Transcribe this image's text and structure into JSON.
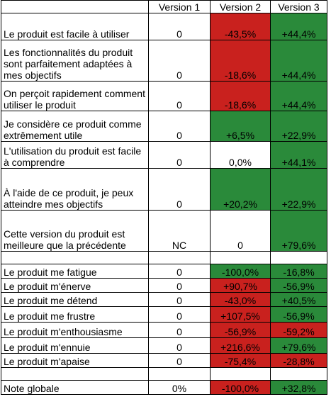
{
  "header": [
    "",
    "Version 1",
    "Version 2",
    "Version 3"
  ],
  "rows": [
    {
      "label": "Le produit est facile à utiliser",
      "v1": "0",
      "v2": "-43,5%",
      "v3": "+44,4%",
      "c2": "red",
      "c3": "green"
    },
    {
      "label": "Les fonctionnalités du produit sont parfaitement adaptées à mes objectifs",
      "v1": "0",
      "v2": "-18,6%",
      "v3": "+44,4%",
      "c2": "red",
      "c3": "green"
    },
    {
      "label": "On perçoit rapidement comment utiliser le produit",
      "v1": "0",
      "v2": "-18,6%",
      "v3": "+44,4%",
      "c2": "red",
      "c3": "green"
    },
    {
      "label": "Je considère ce produit comme extrêmement utile",
      "v1": "0",
      "v2": "+6,5%",
      "v3": "+22,9%",
      "c2": "green",
      "c3": "green"
    },
    {
      "label": "L'utilisation du produit est facile à comprendre",
      "v1": "0",
      "v2": "0,0%",
      "v3": "+44,1%",
      "c2": "",
      "c3": "green"
    },
    {
      "label": "À  l'aide de ce produit, je peux atteindre mes objectifs",
      "v1": "0",
      "v2": "+20,2%",
      "v3": "+22,9%",
      "c2": "green",
      "c3": "green"
    },
    {
      "label": "Cette version du produit est meilleure que la précédente",
      "v1": "NC",
      "v2": "0",
      "v3": "+79,6%",
      "c2": "",
      "c3": "green"
    },
    {
      "label": "Le produit me fatigue",
      "v1": "0",
      "v2": "-100,0%",
      "v3": "-16,8%",
      "c2": "green",
      "c3": "green"
    },
    {
      "label": "Le produit m'énerve",
      "v1": "0",
      "v2": "+90,7%",
      "v3": "-56,9%",
      "c2": "red",
      "c3": "green"
    },
    {
      "label": "Le produit me détend",
      "v1": "0",
      "v2": "-43,0%",
      "v3": "+40,5%",
      "c2": "red",
      "c3": "green"
    },
    {
      "label": "Le produit me frustre",
      "v1": "0",
      "v2": "+107,5%",
      "v3": "-56,9%",
      "c2": "red",
      "c3": "green"
    },
    {
      "label": "Le produit m'enthousiasme",
      "v1": "0",
      "v2": "-56,9%",
      "v3": "-59,2%",
      "c2": "red",
      "c3": "red"
    },
    {
      "label": "Le produit m'ennuie",
      "v1": "0",
      "v2": "+216,6%",
      "v3": "+79,6%",
      "c2": "red",
      "c3": "green"
    },
    {
      "label": "Le produit m'apaise",
      "v1": "0",
      "v2": "-75,4%",
      "v3": "-28,8%",
      "c2": "red",
      "c3": "red"
    },
    {
      "label": "Note globale",
      "v1": "0%",
      "v2": "-100,0%",
      "v3": "+32,8%",
      "c2": "red",
      "c3": "green"
    }
  ],
  "colors": {
    "red": "#c9211e",
    "green": "#2a8a3a"
  }
}
